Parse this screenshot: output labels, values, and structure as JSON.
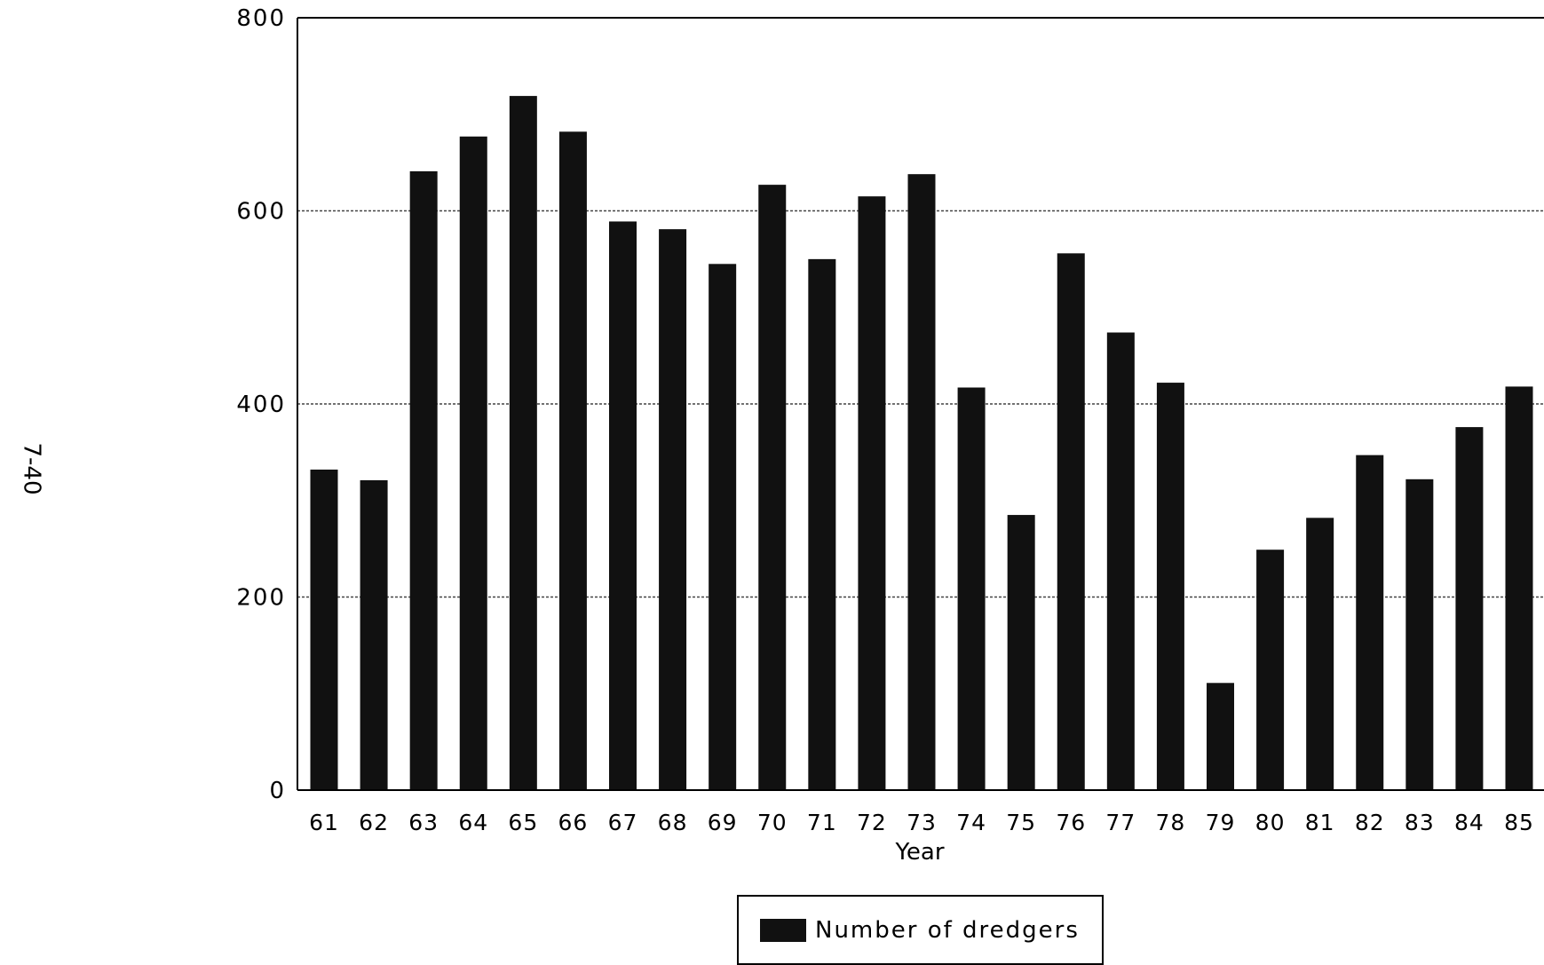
{
  "page_number": "7-40",
  "chart_data": {
    "type": "bar",
    "title": "",
    "xlabel": "Year",
    "ylabel": "",
    "ylim": [
      0,
      800
    ],
    "yticks": [
      0,
      200,
      400,
      600,
      800
    ],
    "grid": "horizontal",
    "legend_position": "bottom-center",
    "categories": [
      "61",
      "62",
      "63",
      "64",
      "65",
      "66",
      "67",
      "68",
      "69",
      "70",
      "71",
      "72",
      "73",
      "74",
      "75",
      "76",
      "77",
      "78",
      "79",
      "80",
      "81",
      "82",
      "83",
      "84",
      "85"
    ],
    "series": [
      {
        "name": "Number of dredgers",
        "color": "#111111",
        "values": [
          332,
          321,
          641,
          677,
          719,
          682,
          589,
          581,
          545,
          627,
          550,
          615,
          638,
          417,
          285,
          556,
          474,
          422,
          111,
          249,
          282,
          347,
          322,
          376,
          418
        ]
      }
    ]
  }
}
